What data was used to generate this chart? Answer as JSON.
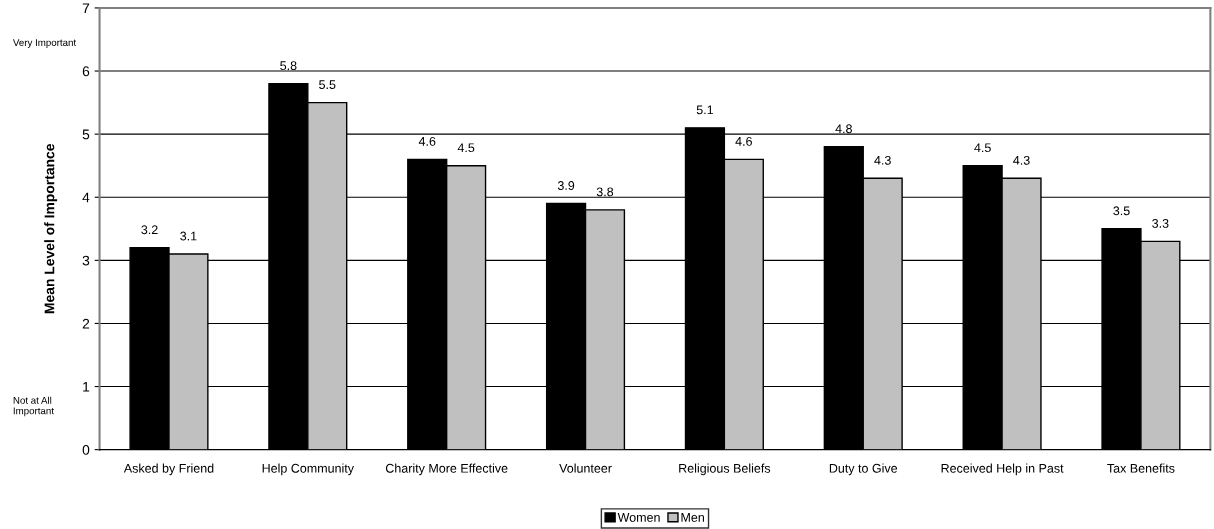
{
  "chart_data": {
    "type": "bar",
    "ylabel": "Mean Level of Importance",
    "categories": [
      "Asked by Friend",
      "Help Community",
      "Charity More Effective",
      "Volunteer",
      "Religious Beliefs",
      "Duty to Give",
      "Received Help in Past",
      "Tax Benefits"
    ],
    "series": [
      {
        "name": "Women",
        "color": "#000000",
        "values": [
          3.2,
          5.8,
          4.6,
          3.9,
          5.1,
          4.8,
          4.5,
          3.5
        ]
      },
      {
        "name": "Men",
        "color": "#c0c0c0",
        "values": [
          3.1,
          5.5,
          4.5,
          3.8,
          4.6,
          4.3,
          4.3,
          3.3
        ]
      }
    ],
    "ylim": [
      0,
      7
    ],
    "yticks": [
      0,
      1,
      2,
      3,
      4,
      5,
      6,
      7
    ],
    "grid": "y",
    "legend": "bottom",
    "data_labels": true,
    "annotations": [
      "Very Important",
      "Not at All Important"
    ]
  }
}
